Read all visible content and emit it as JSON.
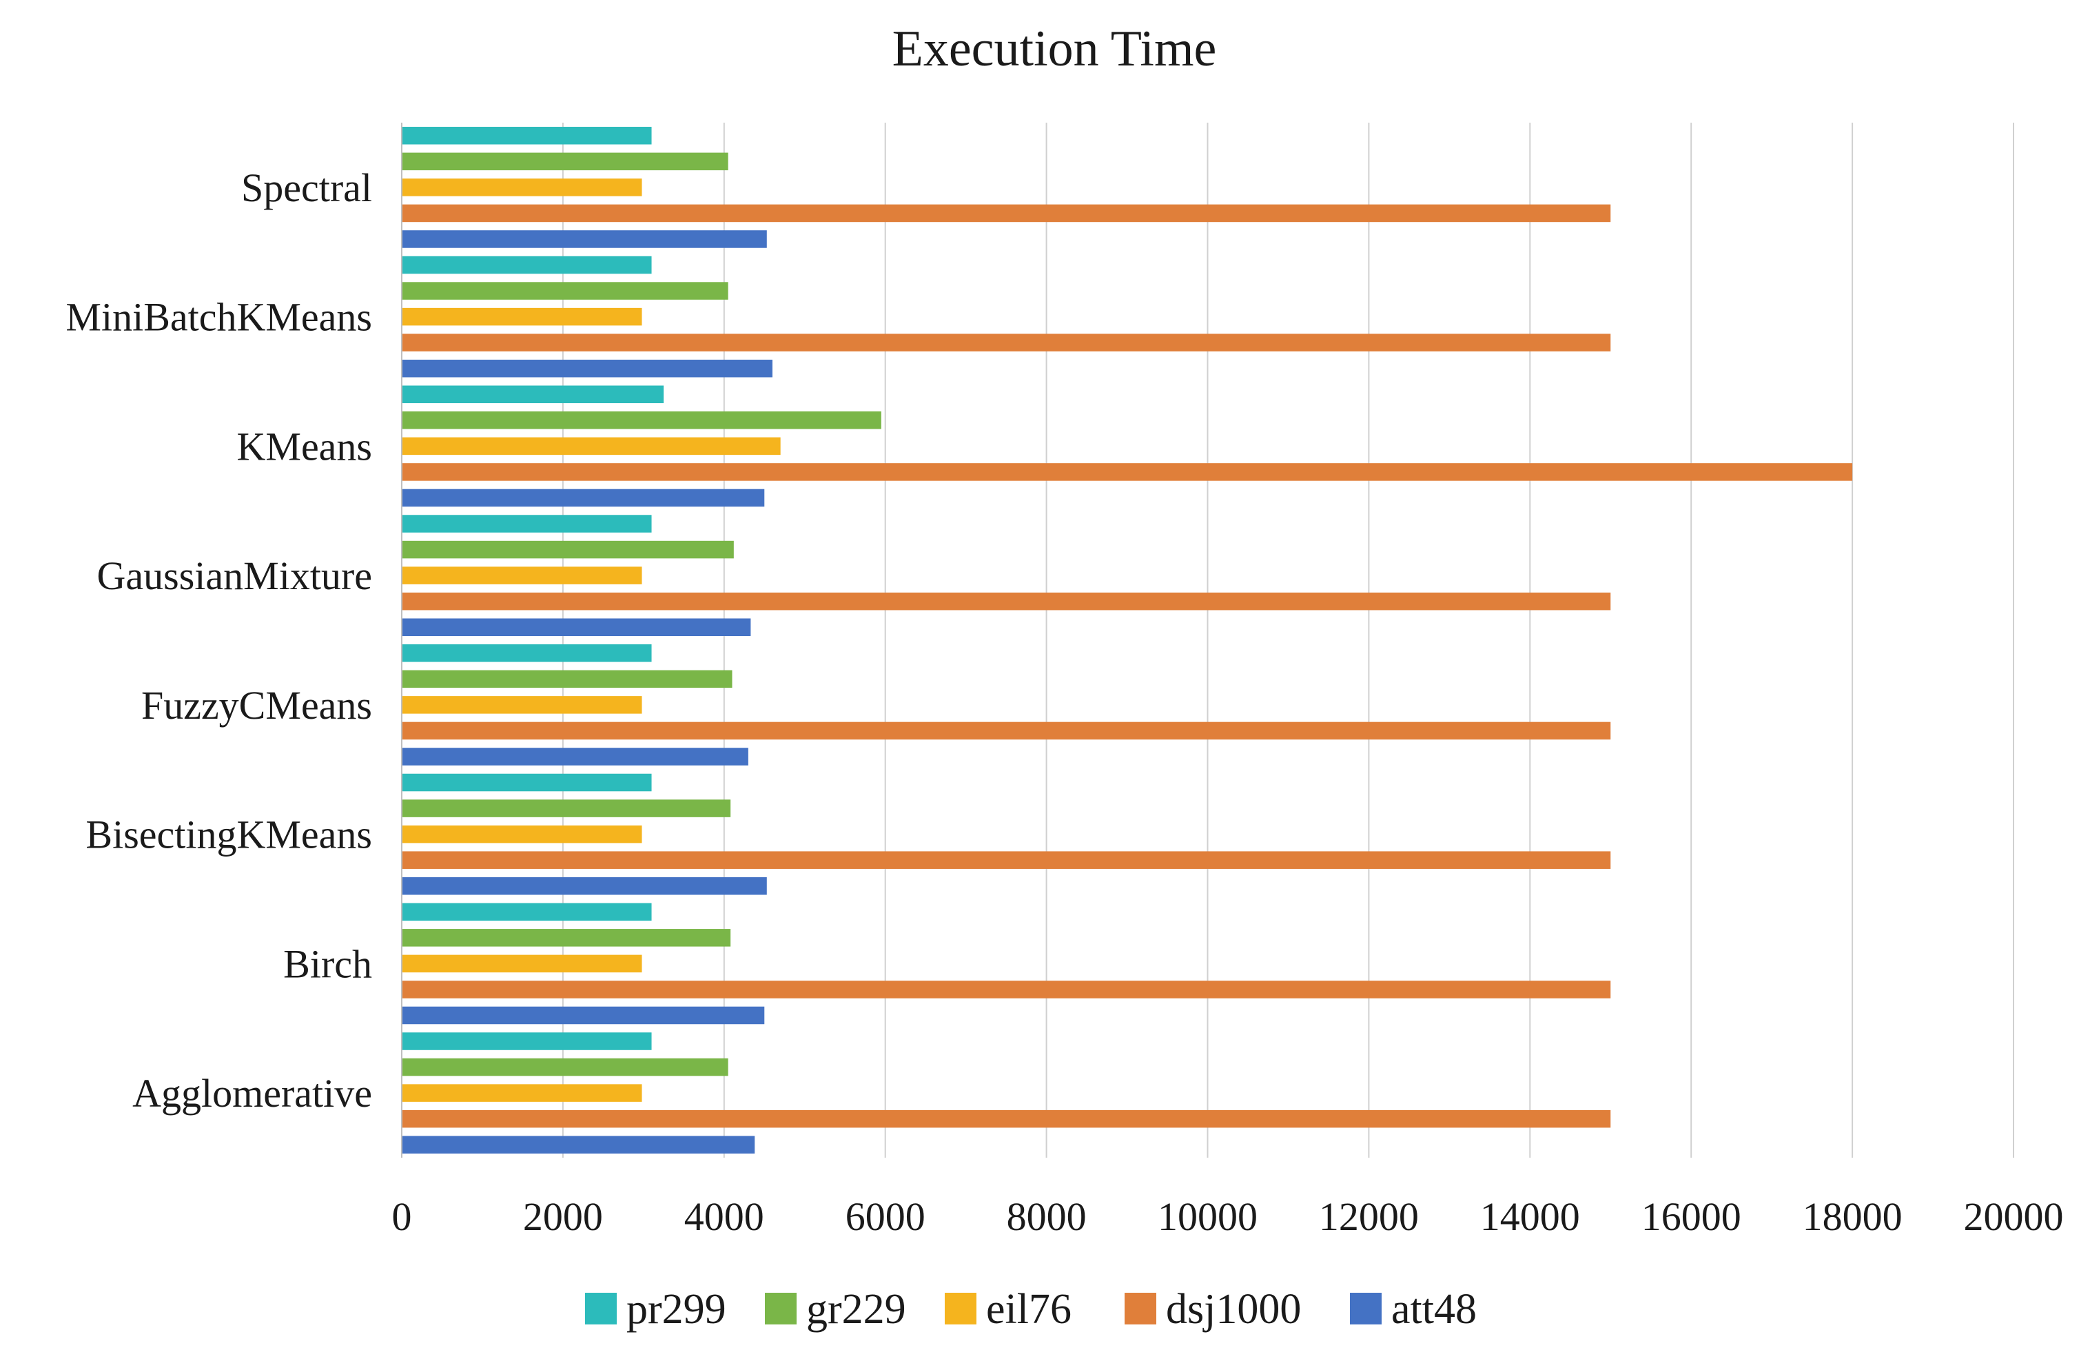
{
  "chart_data": {
    "type": "bar",
    "orientation": "horizontal",
    "title": "Execution Time",
    "categories": [
      "Spectral",
      "MiniBatchKMeans",
      "KMeans",
      "GaussianMixture",
      "FuzzyCMeans",
      "BisectingKMeans",
      "Birch",
      "Agglomerative"
    ],
    "series": [
      {
        "name": "pr299",
        "color": "#2cbbbb",
        "values": [
          3100,
          3100,
          3250,
          3100,
          3100,
          3100,
          3100,
          3100
        ]
      },
      {
        "name": "gr229",
        "color": "#7ab648",
        "values": [
          4050,
          4050,
          5950,
          4120,
          4100,
          4080,
          4080,
          4050
        ]
      },
      {
        "name": "eil76",
        "color": "#f5b41e",
        "values": [
          2980,
          2980,
          4700,
          2980,
          2980,
          2980,
          2980,
          2980
        ]
      },
      {
        "name": "dsj1000",
        "color": "#e07f3a",
        "values": [
          15000,
          15000,
          18000,
          15000,
          15000,
          15000,
          15000,
          15000
        ]
      },
      {
        "name": "att48",
        "color": "#4472c4",
        "values": [
          4530,
          4600,
          4500,
          4330,
          4300,
          4530,
          4500,
          4380
        ]
      }
    ],
    "xlim": [
      0,
      20000
    ],
    "xticks": [
      "0",
      "2000",
      "4000",
      "6000",
      "8000",
      "10000",
      "12000",
      "14000",
      "16000",
      "18000",
      "20000"
    ],
    "xlabel": "",
    "ylabel": "",
    "grid": true,
    "legend_position": "bottom"
  }
}
